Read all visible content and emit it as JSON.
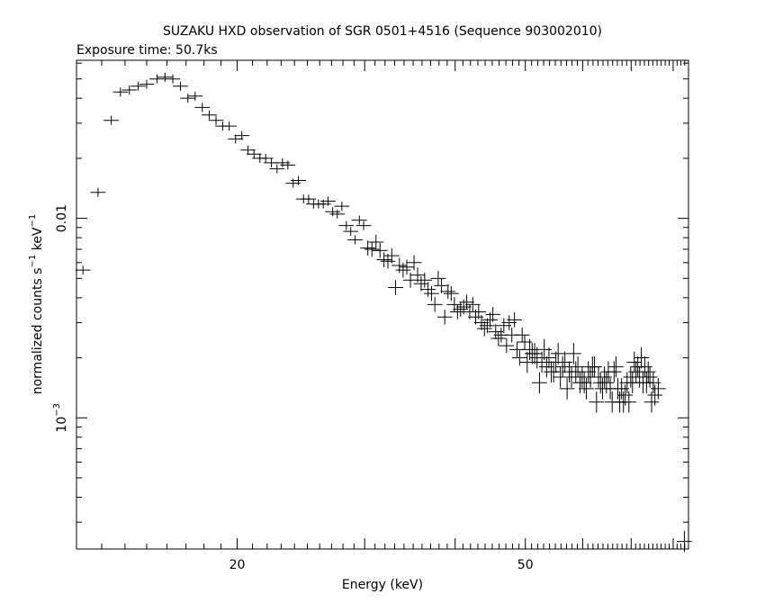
{
  "chart_data": {
    "type": "scatter",
    "title": "SUZAKU HXD observation of SGR 0501+4516 (Sequence 903002010)",
    "subtitle": "Exposure time: 50.7ks",
    "xlabel": "Energy (keV)",
    "ylabel_main": "normalized counts s",
    "ylabel_sup1": "−1",
    "ylabel_mid": " keV",
    "ylabel_sup2": "−1",
    "x_scale": "log",
    "y_scale": "log",
    "xlim": [
      12,
      84
    ],
    "ylim": [
      0.00022,
      0.062
    ],
    "x_tick_labels": [
      "20",
      "50"
    ],
    "x_tick_values": [
      20,
      50
    ],
    "y_tick_labels": [
      {
        "base": "0.01",
        "exp": ""
      },
      {
        "base": "10",
        "exp": "−3"
      }
    ],
    "y_tick_values": [
      0.01,
      0.001
    ],
    "grid": false,
    "legend": "none",
    "series": [
      {
        "points": [
          [
            12.25,
            0.0055
          ],
          [
            12.85,
            0.0135
          ],
          [
            13.4,
            0.031
          ],
          [
            13.8,
            0.043
          ],
          [
            14.2,
            0.044
          ],
          [
            14.6,
            0.046
          ],
          [
            15.0,
            0.047
          ],
          [
            15.5,
            0.05
          ],
          [
            15.9,
            0.051
          ],
          [
            16.3,
            0.05
          ],
          [
            16.7,
            0.046
          ],
          [
            17.1,
            0.04
          ],
          [
            17.5,
            0.041
          ],
          [
            17.9,
            0.036
          ],
          [
            18.3,
            0.033
          ],
          [
            18.7,
            0.031
          ],
          [
            19.1,
            0.029
          ],
          [
            19.5,
            0.029
          ],
          [
            19.9,
            0.025
          ],
          [
            20.3,
            0.026
          ],
          [
            20.7,
            0.022
          ],
          [
            21.1,
            0.021
          ],
          [
            21.5,
            0.02
          ],
          [
            21.9,
            0.02
          ],
          [
            22.3,
            0.019
          ],
          [
            22.7,
            0.0177
          ],
          [
            23.1,
            0.019
          ],
          [
            23.5,
            0.0185
          ],
          [
            23.9,
            0.015
          ],
          [
            24.3,
            0.0155
          ],
          [
            24.7,
            0.0125
          ],
          [
            25.1,
            0.0125
          ],
          [
            25.5,
            0.0118
          ],
          [
            25.9,
            0.0118
          ],
          [
            26.3,
            0.0118
          ],
          [
            26.7,
            0.0122
          ],
          [
            27.1,
            0.0108
          ],
          [
            27.5,
            0.0105
          ],
          [
            27.9,
            0.0115
          ],
          [
            28.3,
            0.0092
          ],
          [
            28.7,
            0.0086
          ],
          [
            29.1,
            0.0078
          ],
          [
            29.5,
            0.0098
          ],
          [
            29.9,
            0.0092
          ],
          [
            30.3,
            0.0071
          ],
          [
            30.7,
            0.007
          ],
          [
            31.1,
            0.0076
          ],
          [
            31.5,
            0.0069
          ],
          [
            31.9,
            0.0062
          ],
          [
            32.3,
            0.0061
          ],
          [
            32.7,
            0.0065
          ],
          [
            33.1,
            0.0045
          ],
          [
            33.5,
            0.0058
          ],
          [
            33.9,
            0.0055
          ],
          [
            34.3,
            0.0057
          ],
          [
            34.7,
            0.0049
          ],
          [
            35.1,
            0.006
          ],
          [
            35.5,
            0.0052
          ],
          [
            35.9,
            0.0047
          ],
          [
            36.3,
            0.0049
          ],
          [
            36.7,
            0.0044
          ],
          [
            37.1,
            0.0042
          ],
          [
            37.5,
            0.0037
          ],
          [
            37.9,
            0.005
          ],
          [
            38.3,
            0.0046
          ],
          [
            38.7,
            0.0032
          ],
          [
            39.1,
            0.0043
          ],
          [
            39.5,
            0.0042
          ],
          [
            39.9,
            0.0037
          ],
          [
            40.3,
            0.0034
          ],
          [
            40.7,
            0.0035
          ],
          [
            41.1,
            0.0036
          ],
          [
            41.5,
            0.0038
          ],
          [
            41.9,
            0.0034
          ],
          [
            42.3,
            0.0037
          ],
          [
            42.7,
            0.0032
          ],
          [
            43.1,
            0.0034
          ],
          [
            43.5,
            0.003
          ],
          [
            43.9,
            0.0028
          ],
          [
            44.3,
            0.0029
          ],
          [
            44.7,
            0.0031
          ],
          [
            45.1,
            0.0033
          ],
          [
            45.5,
            0.0027
          ],
          [
            45.9,
            0.0025
          ],
          [
            46.3,
            0.0026
          ],
          [
            46.7,
            0.0029
          ],
          [
            47.1,
            0.0023
          ],
          [
            47.5,
            0.003
          ],
          [
            47.9,
            0.0026
          ],
          [
            48.3,
            0.0031
          ],
          [
            48.7,
            0.0022
          ],
          [
            49.1,
            0.002
          ],
          [
            49.5,
            0.0026
          ],
          [
            49.9,
            0.0024
          ],
          [
            50.3,
            0.0019
          ],
          [
            50.7,
            0.0022
          ],
          [
            51.1,
            0.0021
          ],
          [
            51.5,
            0.0021
          ],
          [
            51.9,
            0.002
          ],
          [
            52.3,
            0.0015
          ],
          [
            52.7,
            0.0019
          ],
          [
            53.1,
            0.0022
          ],
          [
            53.5,
            0.0018
          ],
          [
            53.9,
            0.002
          ],
          [
            54.3,
            0.0017
          ],
          [
            54.7,
            0.0017
          ],
          [
            55.1,
            0.0019
          ],
          [
            55.5,
            0.0021
          ],
          [
            55.9,
            0.0016
          ],
          [
            56.3,
            0.0018
          ],
          [
            56.7,
            0.0019
          ],
          [
            57.1,
            0.0014
          ],
          [
            57.5,
            0.0017
          ],
          [
            57.9,
            0.0016
          ],
          [
            58.3,
            0.0021
          ],
          [
            58.7,
            0.0017
          ],
          [
            59.1,
            0.0018
          ],
          [
            59.5,
            0.0015
          ],
          [
            59.9,
            0.0016
          ],
          [
            60.3,
            0.0015
          ],
          [
            60.7,
            0.0014
          ],
          [
            61.1,
            0.0017
          ],
          [
            61.5,
            0.0016
          ],
          [
            61.9,
            0.0018
          ],
          [
            62.3,
            0.0018
          ],
          [
            62.7,
            0.0012
          ],
          [
            63.1,
            0.0016
          ],
          [
            63.5,
            0.0015
          ],
          [
            63.9,
            0.0014
          ],
          [
            64.3,
            0.0016
          ],
          [
            64.7,
            0.0015
          ],
          [
            65.1,
            0.0017
          ],
          [
            65.5,
            0.0014
          ],
          [
            65.9,
            0.0012
          ],
          [
            66.3,
            0.0017
          ],
          [
            66.7,
            0.0018
          ],
          [
            67.1,
            0.0014
          ],
          [
            67.5,
            0.0012
          ],
          [
            67.9,
            0.0014
          ],
          [
            68.3,
            0.0012
          ],
          [
            68.7,
            0.0013
          ],
          [
            69.1,
            0.0015
          ],
          [
            69.5,
            0.0012
          ],
          [
            69.9,
            0.0016
          ],
          [
            70.3,
            0.0015
          ],
          [
            70.7,
            0.0019
          ],
          [
            71.1,
            0.0017
          ],
          [
            71.5,
            0.0018
          ],
          [
            71.9,
            0.0016
          ],
          [
            72.3,
            0.002
          ],
          [
            72.7,
            0.0015
          ],
          [
            73.1,
            0.0018
          ],
          [
            73.5,
            0.0015
          ],
          [
            73.9,
            0.0017
          ],
          [
            74.3,
            0.0016
          ],
          [
            74.7,
            0.0012
          ],
          [
            75.1,
            0.0015
          ],
          [
            75.5,
            0.0013
          ],
          [
            76.3,
            0.0014
          ],
          [
            82.9,
            0.00024
          ]
        ]
      }
    ]
  },
  "colors": {
    "ink": "#000000",
    "background": "#ffffff"
  }
}
